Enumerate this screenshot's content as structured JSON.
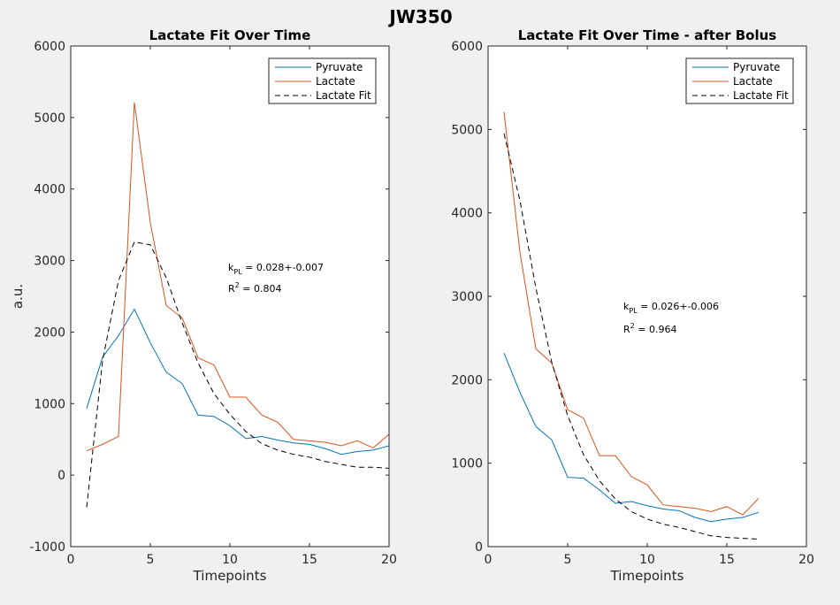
{
  "figure": {
    "title": "JW350"
  },
  "colors": {
    "pyruvate": "#0072BD",
    "lactate": "#D95319",
    "fit": "#000000"
  },
  "chart_data": [
    {
      "type": "line",
      "title": "Lactate Fit Over Time",
      "xlabel": "Timepoints",
      "ylabel": "a.u.",
      "xlim": [
        0,
        20
      ],
      "ylim": [
        -1000,
        6000
      ],
      "xticks": [
        0,
        5,
        10,
        15,
        20
      ],
      "yticks": [
        -1000,
        0,
        1000,
        2000,
        3000,
        4000,
        5000,
        6000
      ],
      "legend_position": "top-right",
      "x": [
        1,
        2,
        3,
        4,
        5,
        6,
        7,
        8,
        9,
        10,
        11,
        12,
        13,
        14,
        15,
        16,
        17,
        18,
        19,
        20
      ],
      "series": [
        {
          "name": "Pyruvate",
          "style": "solid",
          "values": [
            930,
            1650,
            1950,
            2320,
            1850,
            1440,
            1280,
            840,
            820,
            690,
            510,
            540,
            490,
            450,
            430,
            370,
            290,
            330,
            350,
            410
          ]
        },
        {
          "name": "Lactate",
          "style": "solid",
          "values": [
            340,
            430,
            540,
            5210,
            3530,
            2370,
            2200,
            1640,
            1540,
            1090,
            1090,
            840,
            740,
            500,
            480,
            460,
            410,
            480,
            380,
            570
          ]
        },
        {
          "name": "Lactate Fit",
          "style": "dashed",
          "values": [
            -450,
            1600,
            2720,
            3260,
            3220,
            2760,
            2130,
            1570,
            1140,
            850,
            610,
            440,
            350,
            290,
            250,
            190,
            150,
            110,
            110,
            95
          ]
        }
      ],
      "annotations": {
        "kpl_prefix": "k",
        "kpl_sub": "PL",
        "kpl_value": " = 0.028+-0.007",
        "r2_prefix": "R",
        "r2_sup": "2",
        "r2_value": " = 0.804"
      }
    },
    {
      "type": "line",
      "title": "Lactate Fit Over Time - after Bolus",
      "xlabel": "Timepoints",
      "ylabel": "",
      "xlim": [
        0,
        20
      ],
      "ylim": [
        0,
        6000
      ],
      "xticks": [
        0,
        5,
        10,
        15,
        20
      ],
      "yticks": [
        0,
        1000,
        2000,
        3000,
        4000,
        5000,
        6000
      ],
      "legend_position": "top-right",
      "x": [
        1,
        2,
        3,
        4,
        5,
        6,
        7,
        8,
        9,
        10,
        11,
        12,
        13,
        14,
        15,
        16,
        17
      ],
      "series": [
        {
          "name": "Pyruvate",
          "style": "solid",
          "values": [
            2320,
            1850,
            1440,
            1280,
            830,
            820,
            680,
            520,
            540,
            490,
            450,
            430,
            350,
            300,
            330,
            350,
            410
          ]
        },
        {
          "name": "Lactate",
          "style": "solid",
          "values": [
            5210,
            3530,
            2370,
            2200,
            1640,
            1540,
            1090,
            1090,
            840,
            740,
            500,
            480,
            460,
            420,
            480,
            380,
            580
          ]
        },
        {
          "name": "Lactate Fit",
          "style": "dashed",
          "values": [
            4950,
            4150,
            3100,
            2210,
            1570,
            1100,
            790,
            570,
            420,
            330,
            270,
            230,
            180,
            130,
            110,
            100,
            90
          ]
        }
      ],
      "annotations": {
        "kpl_prefix": "k",
        "kpl_sub": "PL",
        "kpl_value": " = 0.026+-0.006",
        "r2_prefix": "R",
        "r2_sup": "2",
        "r2_value": " = 0.964"
      }
    }
  ]
}
